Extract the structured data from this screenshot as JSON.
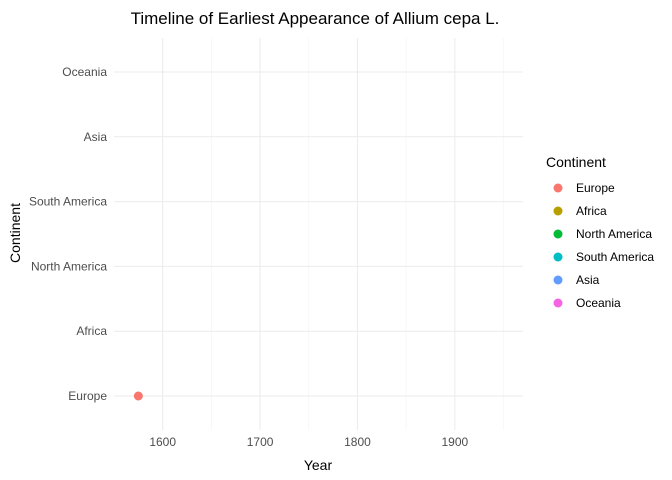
{
  "chart_data": {
    "type": "scatter",
    "title": "Timeline of Earliest Appearance of Allium cepa L.",
    "xlabel": "Year",
    "ylabel": "Continent",
    "xlim": [
      1550,
      1970
    ],
    "x_ticks": [
      1600,
      1700,
      1800,
      1900
    ],
    "categories": [
      "Europe",
      "Africa",
      "North America",
      "South America",
      "Asia",
      "Oceania"
    ],
    "grid": true,
    "legend_title": "Continent",
    "legend_position": "right",
    "series": [
      {
        "name": "Europe",
        "color": "#F8766D",
        "points": [
          {
            "x": 1575,
            "y": "Europe"
          }
        ]
      },
      {
        "name": "Africa",
        "color": "#B79F00",
        "points": []
      },
      {
        "name": "North America",
        "color": "#00BA38",
        "points": []
      },
      {
        "name": "South America",
        "color": "#00BFC4",
        "points": []
      },
      {
        "name": "Asia",
        "color": "#619CFF",
        "points": []
      },
      {
        "name": "Oceania",
        "color": "#F564E3",
        "points": []
      }
    ]
  }
}
